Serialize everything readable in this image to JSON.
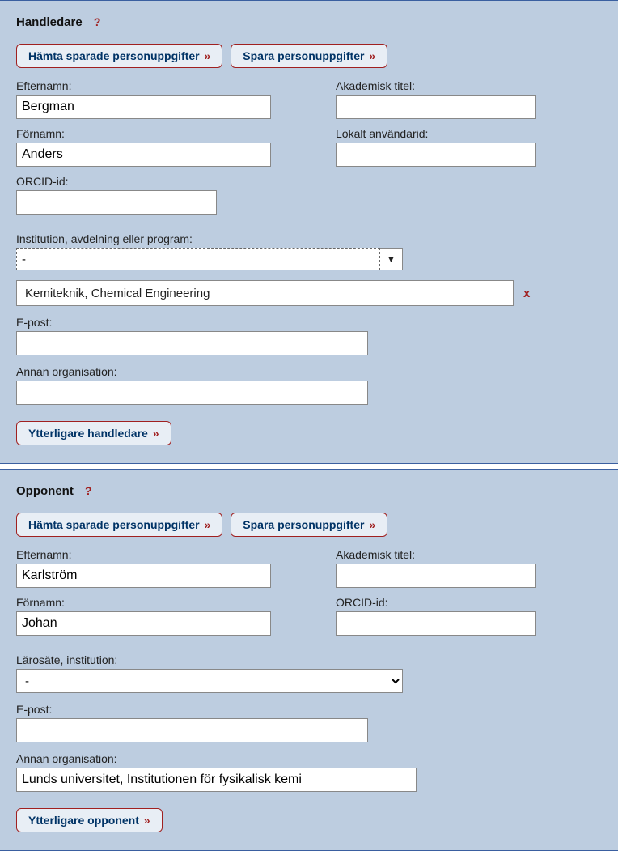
{
  "colors": {
    "section_bg": "#bdcde0",
    "button_border": "#a02020",
    "button_bg": "#e8eef5",
    "button_text": "#003366",
    "input_border": "#888888",
    "section_border": "#3a5fa0"
  },
  "handledare": {
    "title": "Handledare",
    "help": "?",
    "buttons": {
      "fetch": "Hämta sparade personuppgifter",
      "save": "Spara personuppgifter"
    },
    "labels": {
      "efternamn": "Efternamn:",
      "fornamn": "Förnamn:",
      "orcid": "ORCID-id:",
      "akademisk_titel": "Akademisk titel:",
      "lokalt_anvandarid": "Lokalt användarid:",
      "institution": "Institution, avdelning eller program:",
      "epost": "E-post:",
      "annan_org": "Annan organisation:"
    },
    "values": {
      "efternamn": "Bergman",
      "fornamn": "Anders",
      "orcid": "",
      "akademisk_titel": "",
      "lokalt_anvandarid": "",
      "institution_dropdown": "-",
      "institution_selected": "Kemiteknik, Chemical Engineering",
      "epost": "",
      "annan_org": ""
    },
    "remove_label": "x",
    "add_button": "Ytterligare handledare"
  },
  "opponent": {
    "title": "Opponent",
    "help": "?",
    "buttons": {
      "fetch": "Hämta sparade personuppgifter",
      "save": "Spara personuppgifter"
    },
    "labels": {
      "efternamn": "Efternamn:",
      "fornamn": "Förnamn:",
      "akademisk_titel": "Akademisk titel:",
      "orcid": "ORCID-id:",
      "larosate": "Lärosäte, institution:",
      "epost": "E-post:",
      "annan_org": "Annan organisation:"
    },
    "values": {
      "efternamn": "Karlström",
      "fornamn": "Johan",
      "akademisk_titel": "",
      "orcid": "",
      "larosate": "-",
      "epost": "",
      "annan_org": "Lunds universitet, Institutionen för fysikalisk kemi"
    },
    "add_button": "Ytterligare opponent"
  },
  "chevron": "»"
}
